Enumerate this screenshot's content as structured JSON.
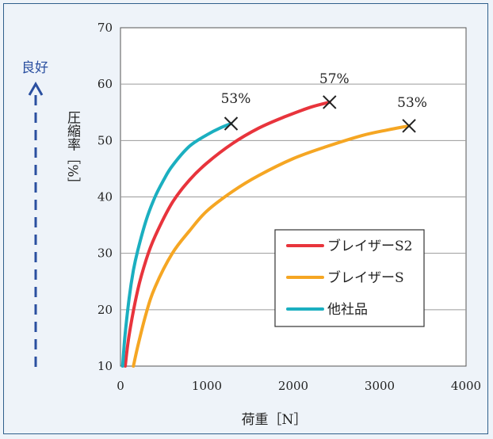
{
  "chart_data": {
    "type": "line",
    "xlabel": "荷重［N］",
    "ylabel": "圧縮率［%］",
    "xlim": [
      0,
      4000
    ],
    "ylim": [
      10,
      70
    ],
    "x_ticks": [
      "0",
      "1000",
      "2000",
      "3000",
      "4000"
    ],
    "y_ticks": [
      "10",
      "20",
      "30",
      "40",
      "50",
      "60",
      "70"
    ],
    "grid": "horizontal",
    "legend_position": "lower-right",
    "good_direction_label": "良好",
    "series": [
      {
        "name": "ブレイザーS2",
        "color": "#e8343c",
        "x": [
          55,
          100,
          200,
          300,
          400,
          600,
          800,
          1000,
          1300,
          1600,
          1900,
          2200,
          2420
        ],
        "y": [
          10,
          15.5,
          23.5,
          29,
          33,
          39,
          43,
          46,
          49.5,
          52.2,
          54.2,
          55.9,
          56.8
        ],
        "end_marker": "x",
        "end_label": "57%"
      },
      {
        "name": "ブレイザーS",
        "color": "#f5a623",
        "x": [
          150,
          200,
          300,
          400,
          600,
          800,
          1000,
          1300,
          1600,
          2000,
          2400,
          2800,
          3100,
          3340
        ],
        "y": [
          10,
          13.5,
          19.5,
          24,
          30,
          34,
          37.5,
          41,
          43.8,
          46.8,
          49,
          50.9,
          51.9,
          52.6
        ],
        "end_marker": "x",
        "end_label": "53%"
      },
      {
        "name": "他社品",
        "color": "#1bafc0",
        "x": [
          25,
          50,
          100,
          150,
          200,
          300,
          400,
          500,
          600,
          800,
          1000,
          1150,
          1280
        ],
        "y": [
          10,
          15,
          22,
          27,
          30.5,
          36,
          40,
          43,
          45.5,
          49,
          51,
          52.2,
          53
        ],
        "end_marker": "x",
        "end_label": "53%"
      }
    ]
  }
}
